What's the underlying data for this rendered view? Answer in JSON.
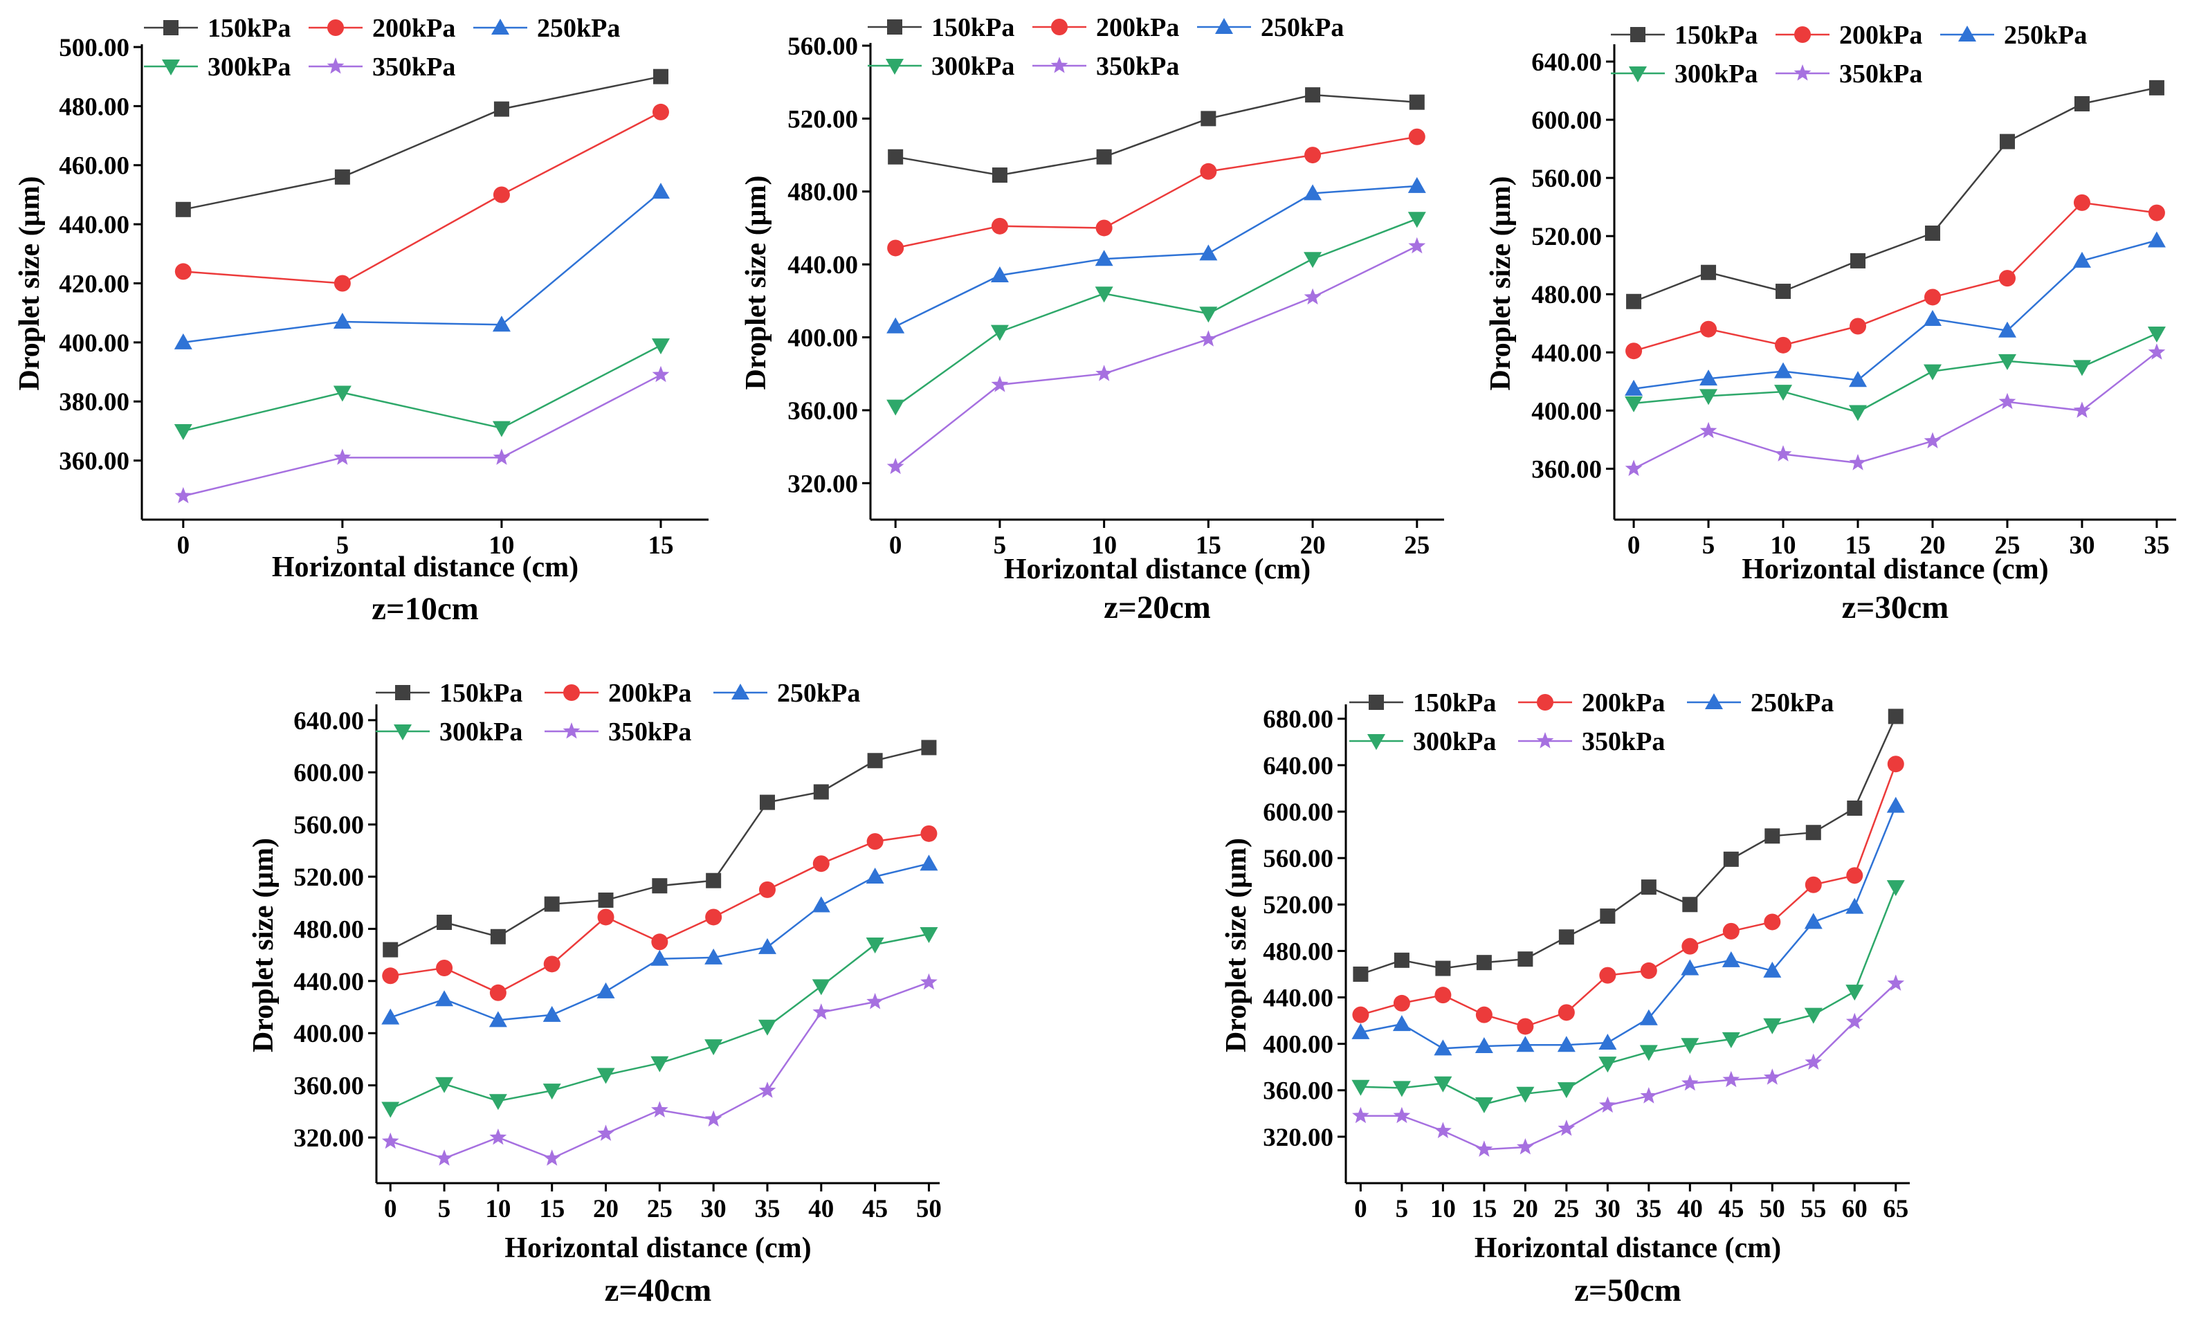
{
  "figure": {
    "series_names": [
      "150kPa",
      "200kPa",
      "250kPa",
      "300kPa",
      "350kPa"
    ],
    "series_colors": [
      "#404040",
      "#ec3b3b",
      "#2f73d6",
      "#2ea86a",
      "#a670e0"
    ],
    "series_markers": [
      "square",
      "circle",
      "triangle-up",
      "triangle-down",
      "star"
    ]
  },
  "chart_data": [
    {
      "type": "line",
      "title": "z=10cm",
      "xlabel": "Horizontal distance (cm)",
      "ylabel": "Droplet size (μm)",
      "x": [
        0,
        5,
        10,
        15
      ],
      "xlim": [
        -1.3,
        16.5
      ],
      "ylim": [
        340,
        500
      ],
      "yticks": [
        "360.00",
        "380.00",
        "400.00",
        "420.00",
        "440.00",
        "460.00",
        "480.00",
        "500.00"
      ],
      "series": [
        {
          "name": "150kPa",
          "values": [
            445,
            456,
            479,
            490
          ]
        },
        {
          "name": "200kPa",
          "values": [
            424,
            420,
            450,
            478
          ]
        },
        {
          "name": "250kPa",
          "values": [
            400,
            407,
            406,
            451
          ]
        },
        {
          "name": "300kPa",
          "values": [
            370,
            383,
            371,
            399
          ]
        },
        {
          "name": "350kPa",
          "values": [
            348,
            361,
            361,
            389
          ]
        }
      ]
    },
    {
      "type": "line",
      "title": "z=20cm",
      "xlabel": "Horizontal distance (cm)",
      "ylabel": "Droplet size (μm)",
      "x": [
        0,
        5,
        10,
        15,
        20,
        25
      ],
      "xlim": [
        -1.2,
        26.3
      ],
      "ylim": [
        300,
        560
      ],
      "yticks": [
        "320.00",
        "360.00",
        "400.00",
        "440.00",
        "480.00",
        "520.00",
        "560.00"
      ],
      "series": [
        {
          "name": "150kPa",
          "values": [
            499,
            489,
            499,
            520,
            533,
            529
          ]
        },
        {
          "name": "200kPa",
          "values": [
            449,
            461,
            460,
            491,
            500,
            510
          ]
        },
        {
          "name": "250kPa",
          "values": [
            406,
            434,
            443,
            446,
            479,
            483
          ]
        },
        {
          "name": "300kPa",
          "values": [
            362,
            403,
            424,
            413,
            443,
            465
          ]
        },
        {
          "name": "350kPa",
          "values": [
            329,
            374,
            380,
            399,
            422,
            450
          ]
        }
      ]
    },
    {
      "type": "line",
      "title": "z=30cm",
      "xlabel": "Horizontal distance (cm)",
      "ylabel": "Droplet size (μm)",
      "x": [
        0,
        5,
        10,
        15,
        20,
        25,
        30,
        35
      ],
      "xlim": [
        -1.3,
        36.3
      ],
      "ylim": [
        325,
        650
      ],
      "yticks": [
        "360.00",
        "400.00",
        "440.00",
        "480.00",
        "520.00",
        "560.00",
        "600.00",
        "640.00"
      ],
      "series": [
        {
          "name": "150kPa",
          "values": [
            475,
            495,
            482,
            503,
            522,
            585,
            611,
            622
          ]
        },
        {
          "name": "200kPa",
          "values": [
            441,
            456,
            445,
            458,
            478,
            491,
            543,
            536
          ]
        },
        {
          "name": "250kPa",
          "values": [
            415,
            422,
            427,
            421,
            463,
            455,
            503,
            517
          ]
        },
        {
          "name": "300kPa",
          "values": [
            405,
            410,
            413,
            399,
            427,
            434,
            430,
            453
          ]
        },
        {
          "name": "350kPa",
          "values": [
            360,
            386,
            370,
            364,
            379,
            406,
            400,
            440
          ]
        }
      ]
    },
    {
      "type": "line",
      "title": "z=40cm",
      "xlabel": "Horizontal distance (cm)",
      "ylabel": "Droplet size (μm)",
      "x": [
        0,
        5,
        10,
        15,
        20,
        25,
        30,
        35,
        40,
        45,
        50
      ],
      "xlim": [
        -1.3,
        51
      ],
      "ylim": [
        285,
        650
      ],
      "yticks": [
        "320.00",
        "360.00",
        "400.00",
        "440.00",
        "480.00",
        "520.00",
        "560.00",
        "600.00",
        "640.00"
      ],
      "series": [
        {
          "name": "150kPa",
          "values": [
            464,
            485,
            474,
            499,
            502,
            513,
            517,
            577,
            585,
            609,
            619
          ]
        },
        {
          "name": "200kPa",
          "values": [
            444,
            450,
            431,
            453,
            489,
            470,
            489,
            510,
            530,
            547,
            553
          ]
        },
        {
          "name": "250kPa",
          "values": [
            412,
            426,
            410,
            414,
            432,
            457,
            458,
            466,
            498,
            520,
            530
          ]
        },
        {
          "name": "300kPa",
          "values": [
            342,
            361,
            348,
            356,
            368,
            377,
            390,
            405,
            436,
            468,
            476
          ]
        },
        {
          "name": "350kPa",
          "values": [
            317,
            304,
            320,
            304,
            323,
            341,
            334,
            356,
            416,
            424,
            439
          ]
        }
      ]
    },
    {
      "type": "line",
      "title": "z=50cm",
      "xlabel": "Horizontal distance (cm)",
      "ylabel": "Droplet size (μm)",
      "x": [
        0,
        5,
        10,
        15,
        20,
        25,
        30,
        35,
        40,
        45,
        50,
        55,
        60,
        65
      ],
      "xlim": [
        -1.8,
        66.7
      ],
      "ylim": [
        280,
        690
      ],
      "yticks": [
        "320.00",
        "360.00",
        "400.00",
        "440.00",
        "480.00",
        "520.00",
        "560.00",
        "600.00",
        "640.00",
        "680.00"
      ],
      "series": [
        {
          "name": "150kPa",
          "values": [
            460,
            472,
            465,
            470,
            473,
            492,
            510,
            535,
            520,
            559,
            579,
            582,
            603,
            682
          ]
        },
        {
          "name": "200kPa",
          "values": [
            425,
            435,
            442,
            425,
            415,
            427,
            459,
            463,
            484,
            497,
            505,
            537,
            545,
            641
          ]
        },
        {
          "name": "250kPa",
          "values": [
            410,
            417,
            396,
            398,
            399,
            399,
            401,
            422,
            465,
            472,
            463,
            505,
            518,
            605
          ]
        },
        {
          "name": "300kPa",
          "values": [
            363,
            362,
            366,
            348,
            357,
            361,
            383,
            393,
            399,
            404,
            416,
            425,
            445,
            535
          ]
        },
        {
          "name": "350kPa",
          "values": [
            338,
            338,
            325,
            309,
            311,
            327,
            347,
            355,
            366,
            369,
            371,
            384,
            419,
            452
          ]
        }
      ]
    }
  ]
}
